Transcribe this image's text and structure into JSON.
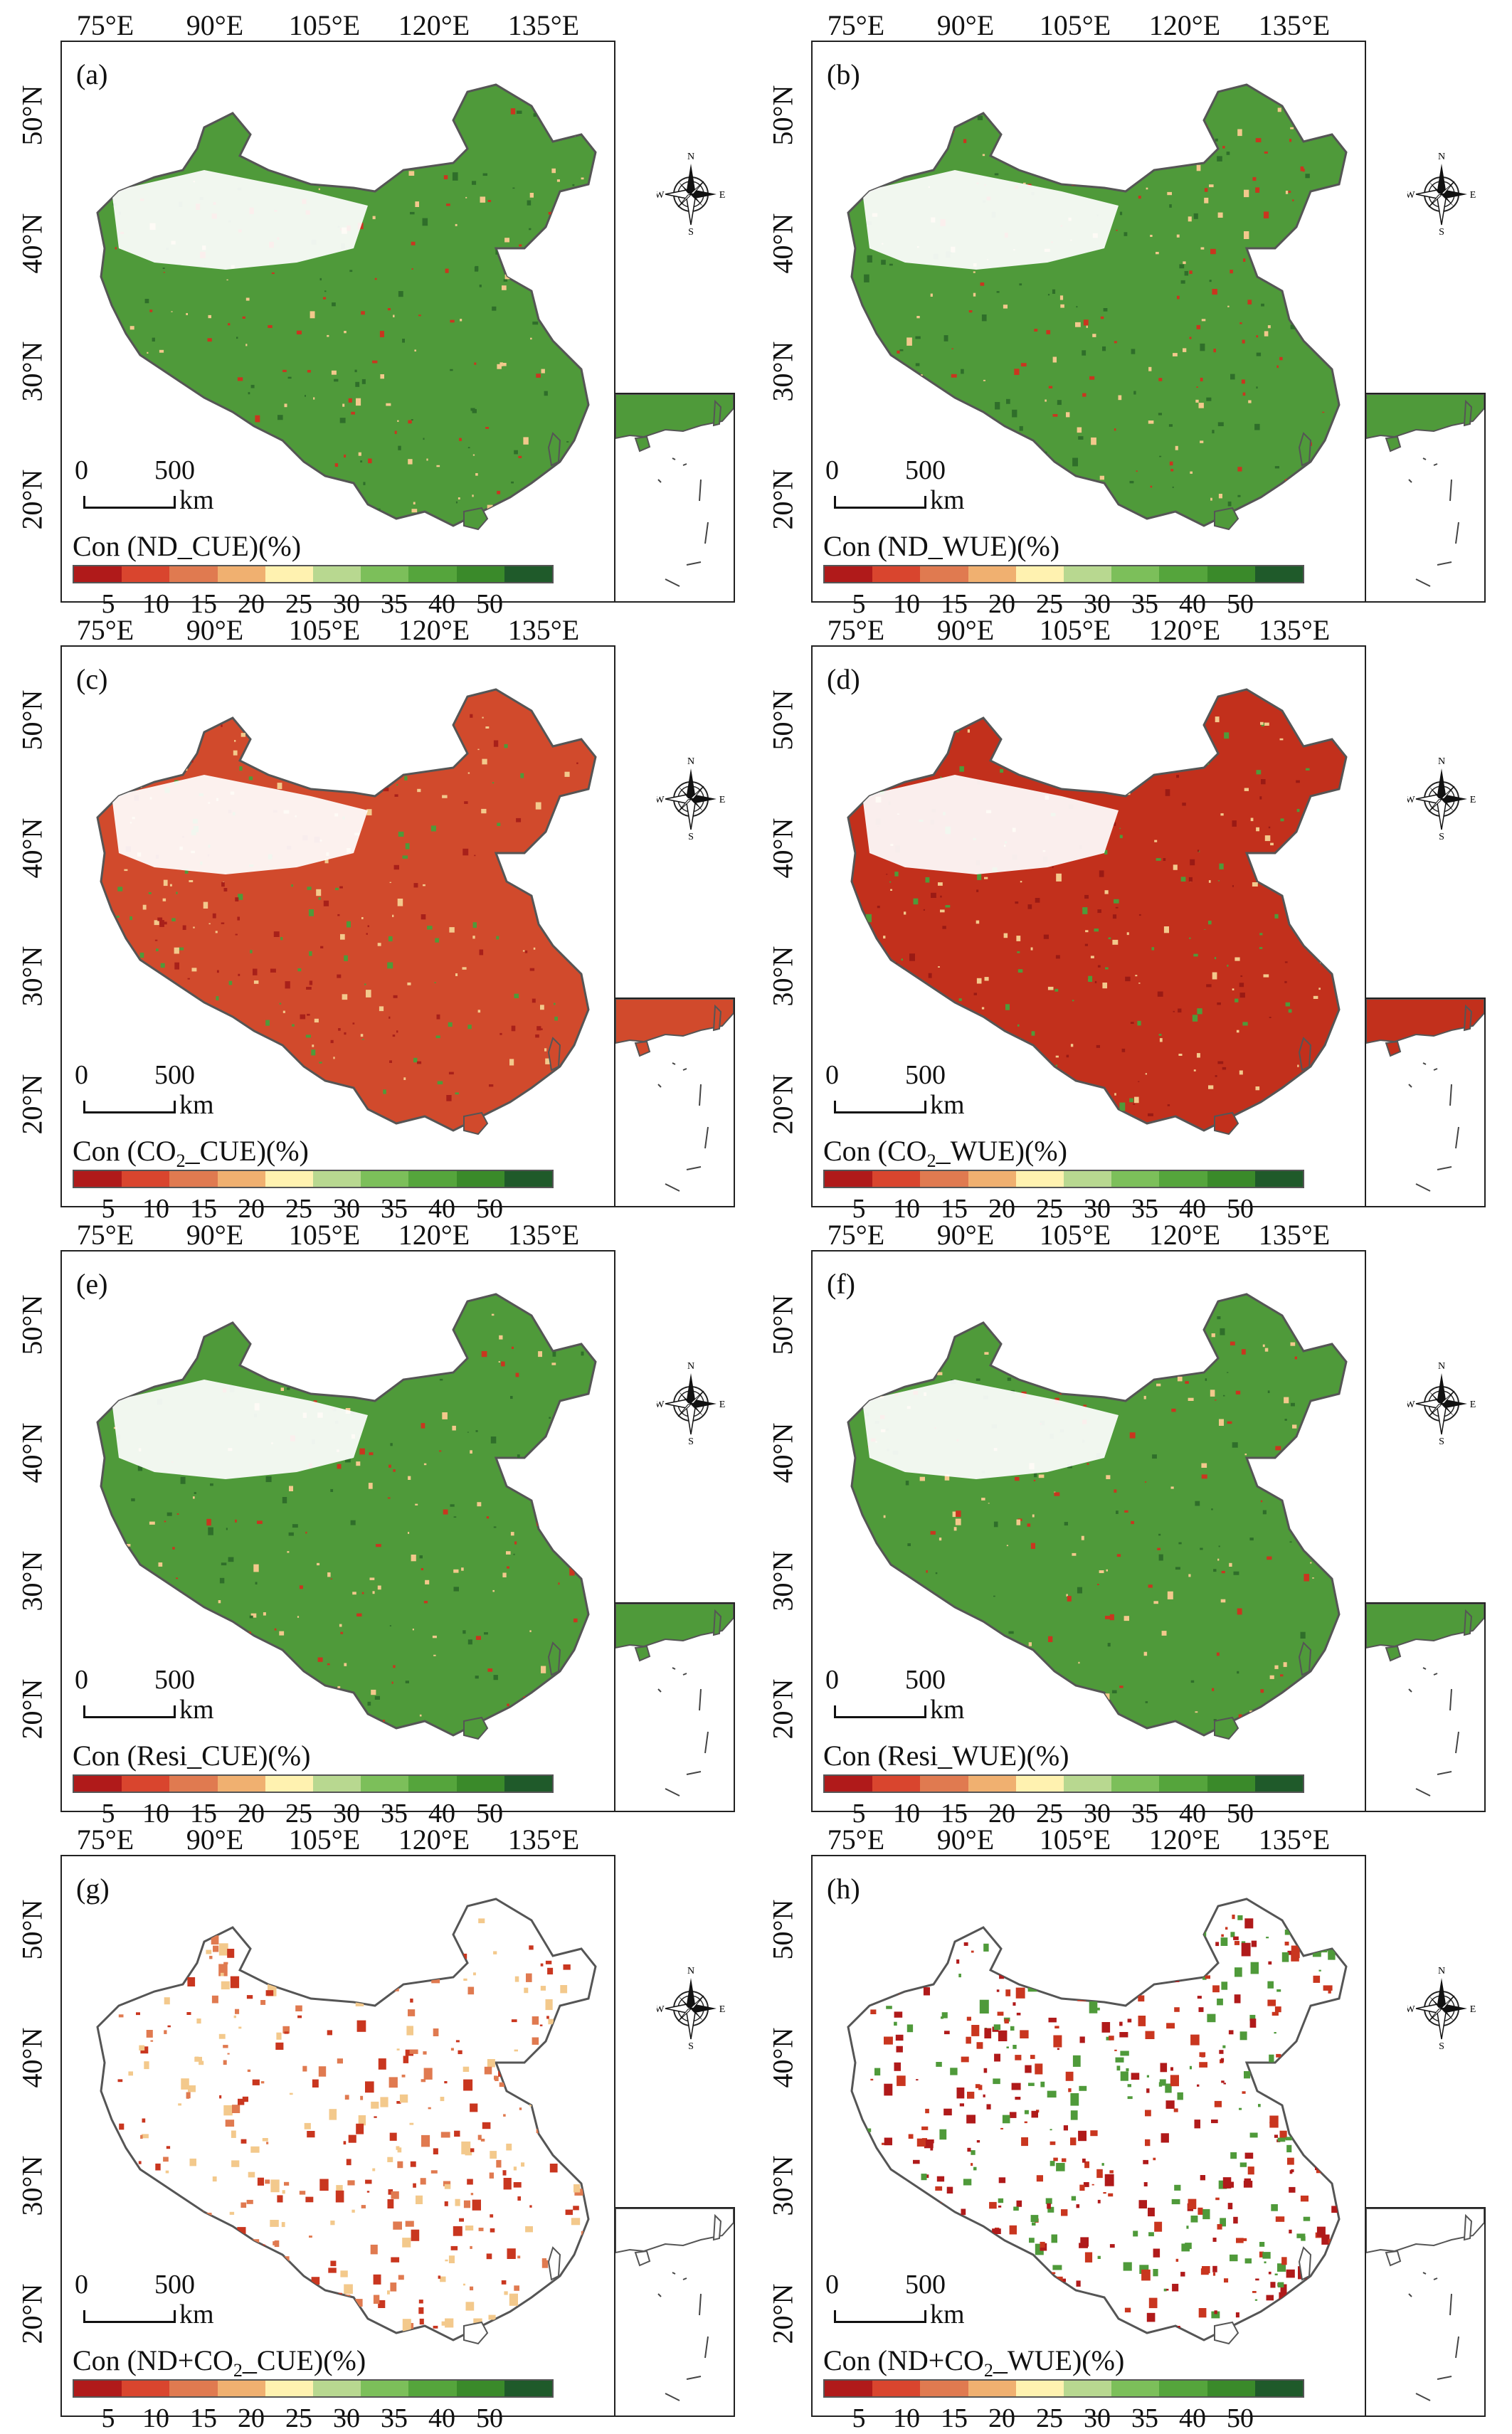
{
  "longitude_labels": [
    "75°E",
    "90°E",
    "105°E",
    "120°E",
    "135°E"
  ],
  "latitude_labels": [
    "50°N",
    "40°N",
    "30°N",
    "20°N"
  ],
  "scale_bar": {
    "start": "0",
    "end": "500",
    "unit": "km"
  },
  "compass": {
    "north": "N",
    "south": "S",
    "east": "E",
    "west": "W"
  },
  "legend": {
    "ticks": [
      "5",
      "10",
      "15",
      "20",
      "25",
      "30",
      "35",
      "40",
      "50"
    ],
    "colors": [
      "#b01a1a",
      "#d9452e",
      "#e07a50",
      "#f0b070",
      "#fff2b0",
      "#b8d890",
      "#7cbf5a",
      "#55a53c",
      "#3a8a2a",
      "#1f5a2a"
    ]
  },
  "palette": {
    "land": "#4f9a3a",
    "land_dark": "#2f6e2a",
    "red": "#c9361f",
    "pale": "#f3c98c",
    "outline": "#555555"
  },
  "panels": [
    {
      "label": "(a)",
      "title_pre": "Con (ND_CUE)(%)",
      "title_sub": "",
      "title_post": "",
      "scheme": "green"
    },
    {
      "label": "(b)",
      "title_pre": "Con (ND_WUE)(%)",
      "title_sub": "",
      "title_post": "",
      "scheme": "green_dark"
    },
    {
      "label": "(c)",
      "title_pre": "Con (CO",
      "title_sub": "2",
      "title_post": "_CUE)(%)",
      "scheme": "red"
    },
    {
      "label": "(d)",
      "title_pre": "Con (CO",
      "title_sub": "2",
      "title_post": "_WUE)(%)",
      "scheme": "red_dark"
    },
    {
      "label": "(e)",
      "title_pre": "Con (Resi_CUE)(%)",
      "title_sub": "",
      "title_post": "",
      "scheme": "green"
    },
    {
      "label": "(f)",
      "title_pre": "Con (Resi_WUE)(%)",
      "title_sub": "",
      "title_post": "",
      "scheme": "green"
    },
    {
      "label": "(g)",
      "title_pre": "Con (ND+CO",
      "title_sub": "2",
      "title_post": "_CUE)(%)",
      "scheme": "sparse"
    },
    {
      "label": "(h)",
      "title_pre": "Con (ND+CO",
      "title_sub": "2",
      "title_post": "_WUE)(%)",
      "scheme": "sparse_more"
    }
  ]
}
